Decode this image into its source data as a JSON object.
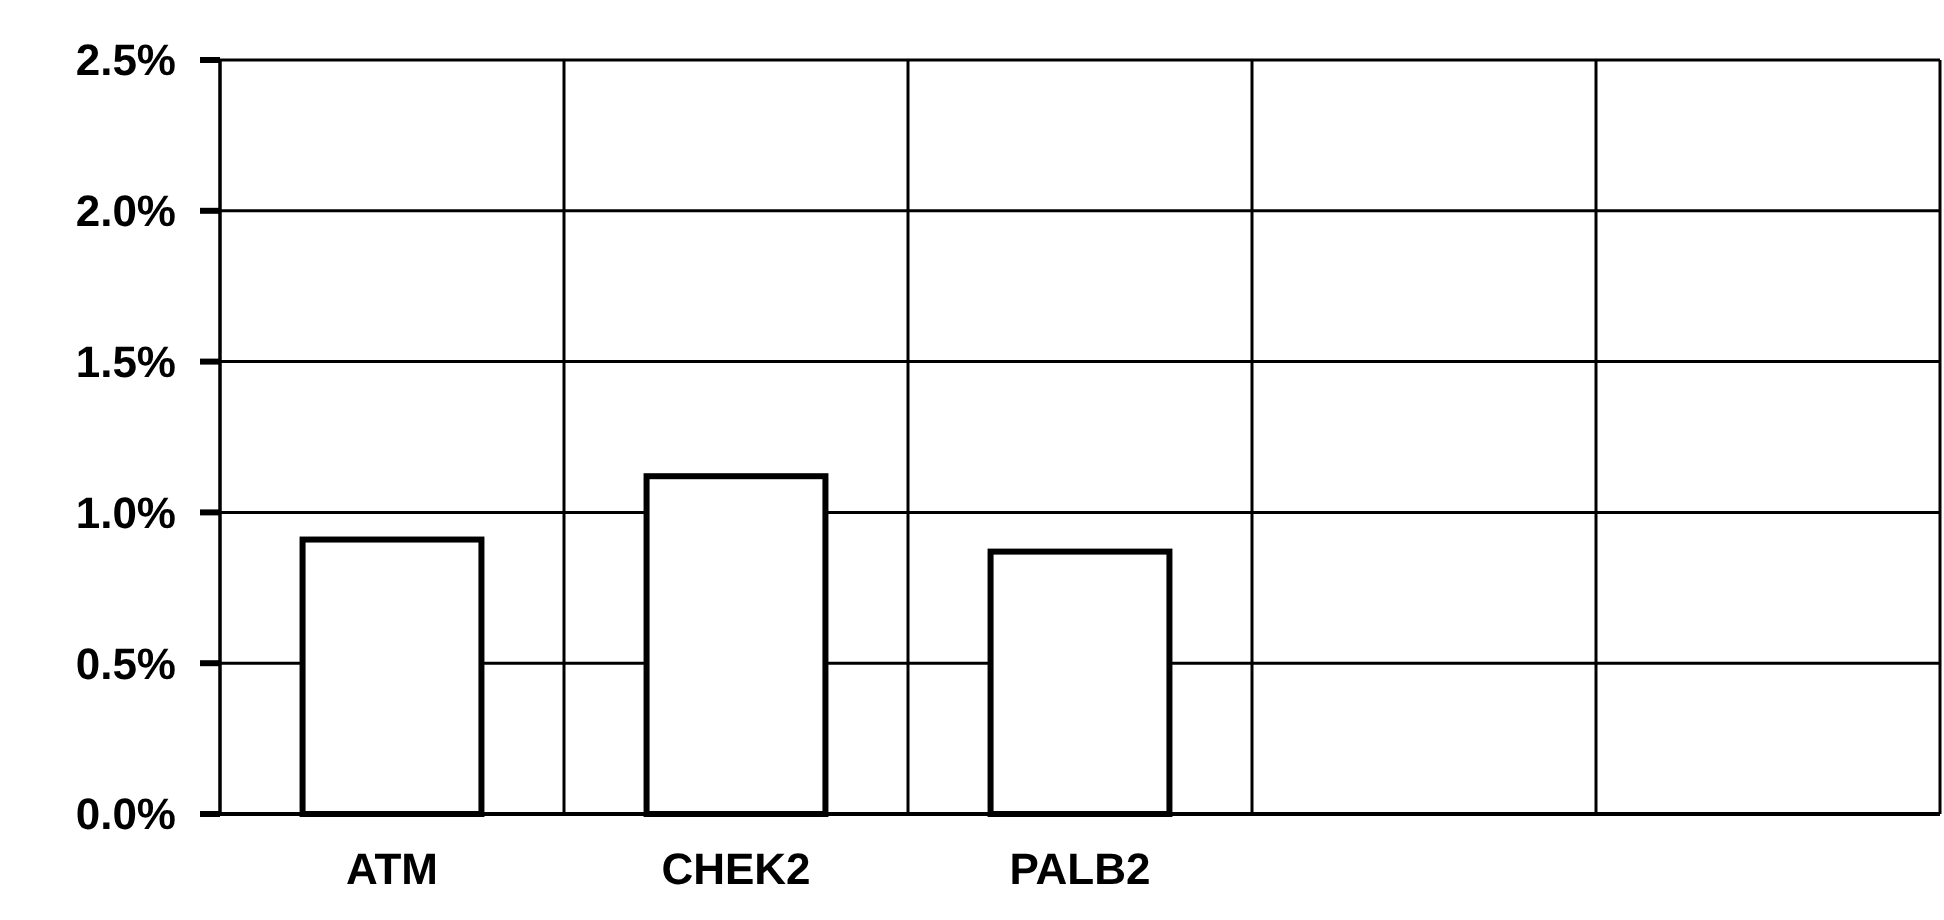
{
  "chart_data": {
    "type": "bar",
    "categories": [
      "ATM",
      "CHEK2",
      "PALB2",
      null,
      null
    ],
    "values": [
      0.91,
      1.12,
      0.87,
      null,
      null
    ],
    "color": "#ffffff",
    "ylim": [
      0,
      2.5
    ],
    "yticks": [
      {
        "value": 0,
        "label": "0.0%"
      },
      {
        "value": 0.5,
        "label": "0.5%"
      },
      {
        "value": 1,
        "label": "1.0%"
      },
      {
        "value": 1.5,
        "label": "1.5%"
      },
      {
        "value": 2,
        "label": "2.0%"
      },
      {
        "value": 2.5,
        "label": "2.5%"
      }
    ],
    "grid": true
  }
}
